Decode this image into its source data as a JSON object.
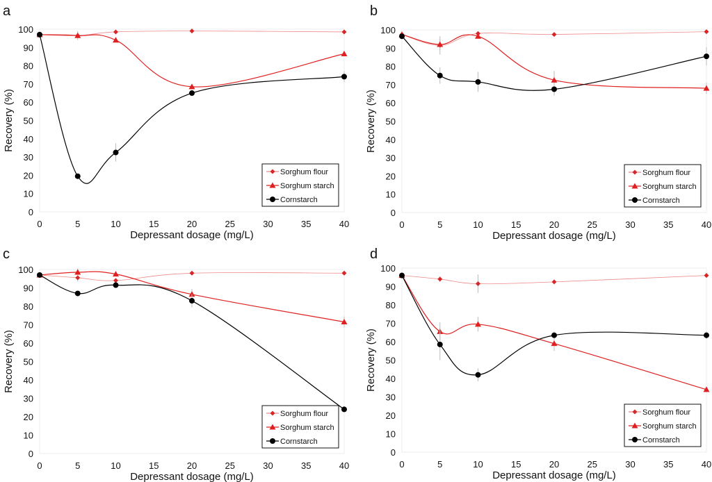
{
  "chart_data": [
    {
      "type": "line",
      "panel": "a",
      "xlabel": "Depressant dosage (mg/L)",
      "ylabel": "Recovery (%)",
      "xlim": [
        0,
        40
      ],
      "ylim": [
        0,
        100
      ],
      "xticks": [
        0,
        5,
        10,
        15,
        20,
        25,
        30,
        35,
        40
      ],
      "yticks": [
        0,
        10,
        20,
        30,
        40,
        50,
        60,
        70,
        80,
        90,
        100
      ],
      "legend_position": "bottom-right",
      "x": [
        0,
        5,
        10,
        20,
        40
      ],
      "series": [
        {
          "name": "Sorghum flour",
          "marker": "diamond",
          "color": "#d62728",
          "values": [
            97,
            96.5,
            98.5,
            99,
            98.5
          ],
          "errors": [
            0,
            2.5,
            0.5,
            0.5,
            0.5
          ]
        },
        {
          "name": "Sorghum starch",
          "marker": "triangle",
          "color": "#e02020",
          "values": [
            97,
            96.5,
            94,
            68.5,
            86.5
          ],
          "errors": [
            0,
            1.5,
            1,
            1.5,
            1
          ]
        },
        {
          "name": "Cornstarch",
          "marker": "circle",
          "color": "#000000",
          "values": [
            97,
            19.5,
            32.5,
            65,
            74
          ],
          "errors": [
            0,
            1,
            5,
            1,
            3
          ]
        }
      ]
    },
    {
      "type": "line",
      "panel": "b",
      "xlabel": "Depressant dosage (mg/L)",
      "ylabel": "Recovery (%)",
      "xlim": [
        0,
        40
      ],
      "ylim": [
        0,
        100
      ],
      "xticks": [
        0,
        5,
        10,
        15,
        20,
        25,
        30,
        35,
        40
      ],
      "yticks": [
        0,
        10,
        20,
        30,
        40,
        50,
        60,
        70,
        80,
        90,
        100
      ],
      "legend_position": "bottom-right",
      "x": [
        0,
        5,
        10,
        20,
        40
      ],
      "series": [
        {
          "name": "Sorghum flour",
          "marker": "diamond",
          "color": "#d62728",
          "values": [
            97.5,
            91.5,
            98,
            97.5,
            99
          ],
          "errors": [
            1,
            5,
            1,
            1,
            0.5
          ]
        },
        {
          "name": "Sorghum starch",
          "marker": "triangle",
          "color": "#e02020",
          "values": [
            97.5,
            92,
            96.5,
            72.5,
            68
          ],
          "errors": [
            1,
            3,
            1,
            5,
            3
          ]
        },
        {
          "name": "Cornstarch",
          "marker": "circle",
          "color": "#000000",
          "values": [
            96.5,
            75,
            71.5,
            67.5,
            85.5
          ],
          "errors": [
            1,
            4.5,
            5.5,
            3.5,
            5
          ]
        }
      ]
    },
    {
      "type": "line",
      "panel": "c",
      "xlabel": "Depressant dosage (mg/L)",
      "ylabel": "Recovery (%)",
      "xlim": [
        0,
        40
      ],
      "ylim": [
        0,
        100
      ],
      "xticks": [
        0,
        5,
        10,
        15,
        20,
        25,
        30,
        35,
        40
      ],
      "yticks": [
        0,
        10,
        20,
        30,
        40,
        50,
        60,
        70,
        80,
        90,
        100
      ],
      "legend_position": "bottom-right",
      "x": [
        0,
        5,
        10,
        20,
        40
      ],
      "series": [
        {
          "name": "Sorghum flour",
          "marker": "diamond",
          "color": "#d62728",
          "values": [
            97,
            95.5,
            94,
            98,
            98
          ],
          "errors": [
            0,
            2,
            1,
            0.5,
            0.5
          ]
        },
        {
          "name": "Sorghum starch",
          "marker": "triangle",
          "color": "#e02020",
          "values": [
            97,
            98.5,
            97.5,
            86.5,
            71.5
          ],
          "errors": [
            0,
            2,
            1,
            3,
            3
          ]
        },
        {
          "name": "Cornstarch",
          "marker": "circle",
          "color": "#000000",
          "values": [
            97,
            87,
            91.5,
            83,
            24
          ],
          "errors": [
            0,
            1,
            1,
            3.5,
            0.5
          ]
        }
      ]
    },
    {
      "type": "line",
      "panel": "d",
      "xlabel": "Depressant dosage (mg/L)",
      "ylabel": "Recovery (%)",
      "xlim": [
        0,
        40
      ],
      "ylim": [
        0,
        100
      ],
      "xticks": [
        0,
        5,
        10,
        15,
        20,
        25,
        30,
        35,
        40
      ],
      "yticks": [
        0,
        10,
        20,
        30,
        40,
        50,
        60,
        70,
        80,
        90,
        100
      ],
      "legend_position": "bottom-right",
      "x": [
        0,
        5,
        10,
        20,
        40
      ],
      "series": [
        {
          "name": "Sorghum flour",
          "marker": "diamond",
          "color": "#d62728",
          "values": [
            96,
            94,
            91.5,
            92.5,
            96
          ],
          "errors": [
            1,
            1.5,
            5,
            0.5,
            0.5
          ]
        },
        {
          "name": "Sorghum starch",
          "marker": "triangle",
          "color": "#e02020",
          "values": [
            96,
            65.5,
            69.5,
            59,
            34
          ],
          "errors": [
            0,
            5,
            4,
            4,
            1.5
          ]
        },
        {
          "name": "Cornstarch",
          "marker": "circle",
          "color": "#000000",
          "values": [
            96,
            58.5,
            42,
            63.5,
            63.5
          ],
          "errors": [
            0,
            8.5,
            3.5,
            2,
            2
          ]
        }
      ]
    }
  ]
}
